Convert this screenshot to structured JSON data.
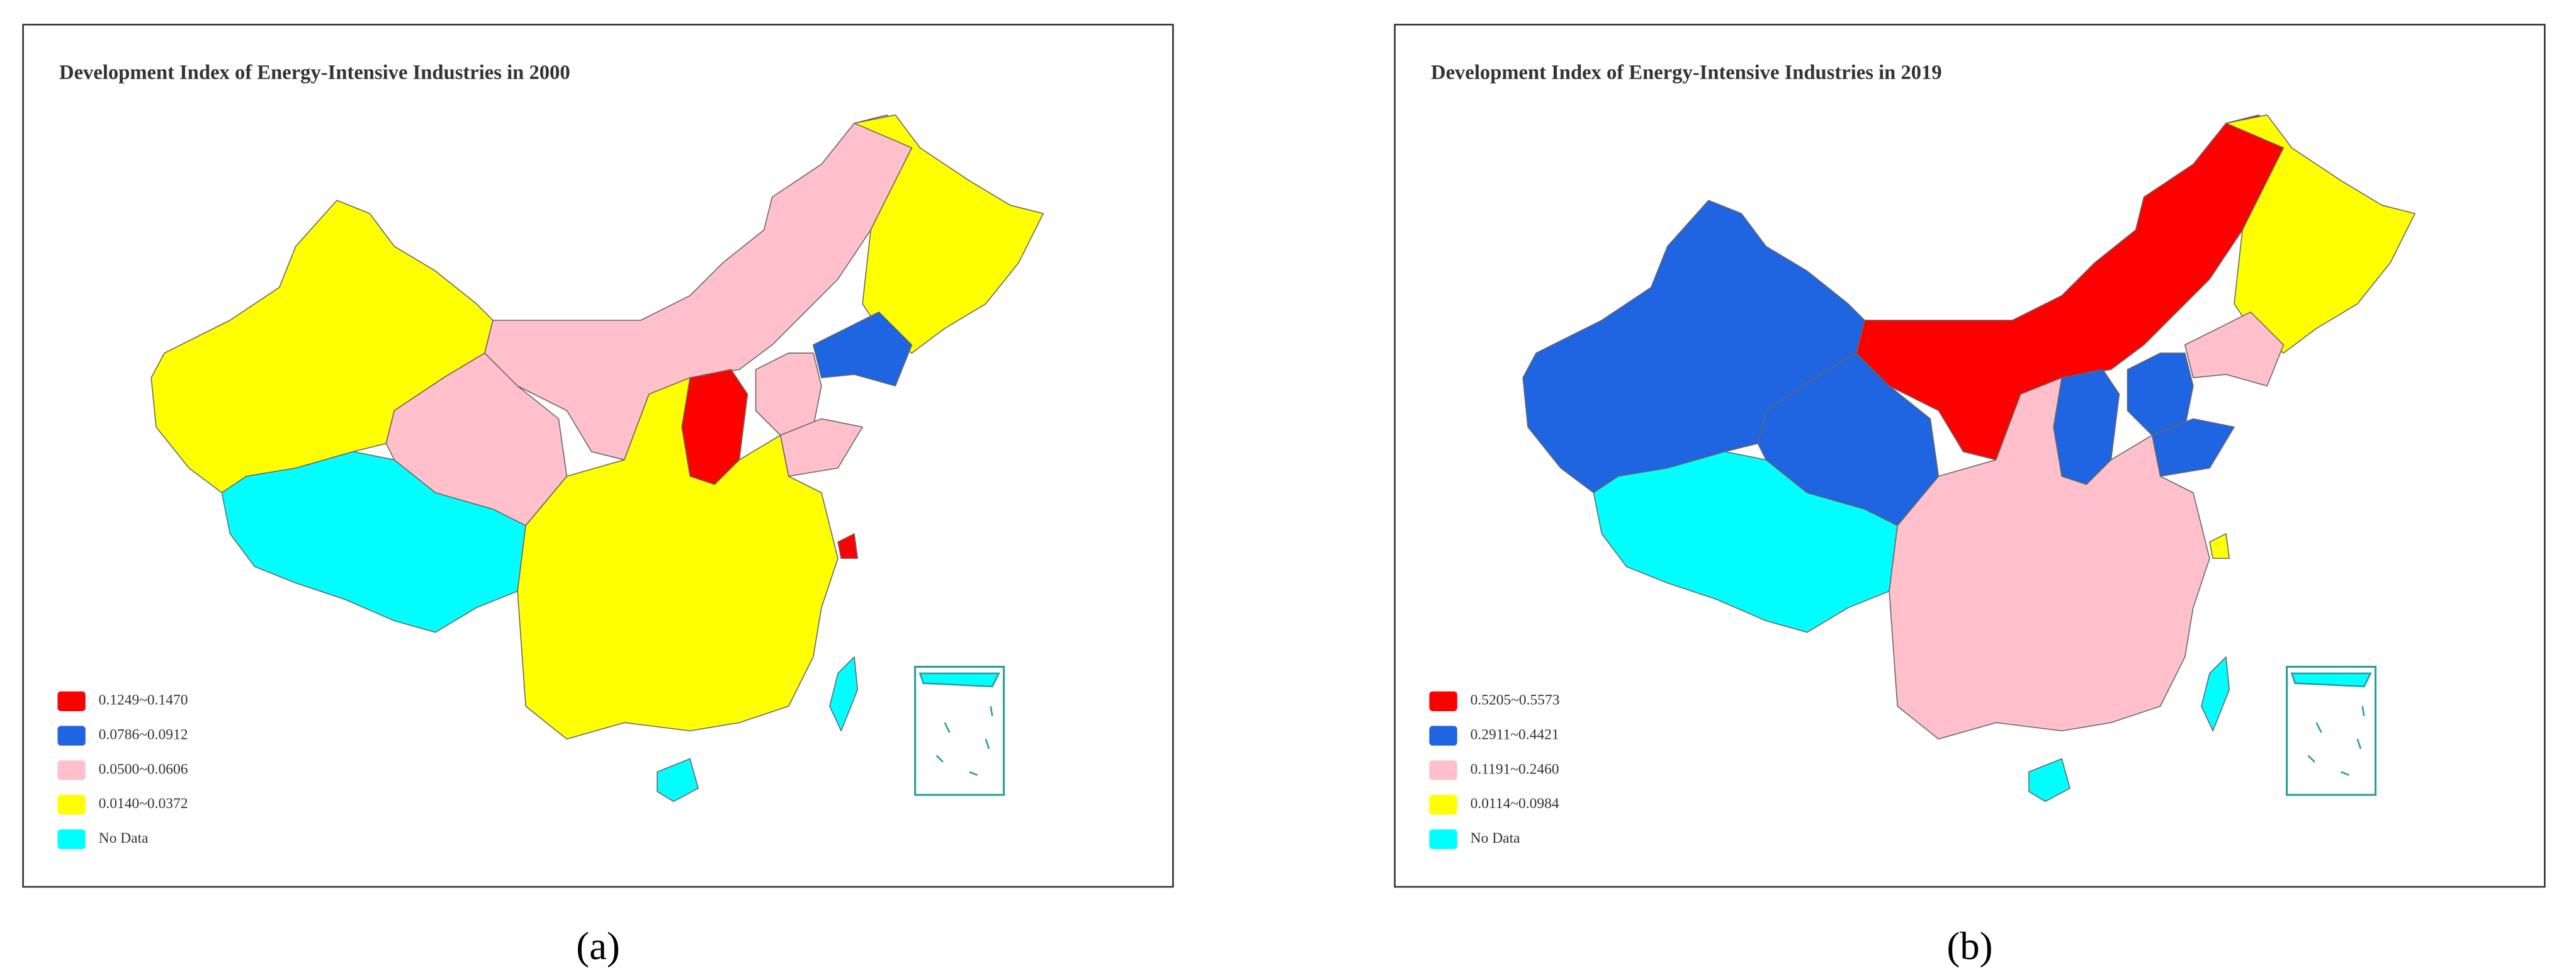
{
  "panels": [
    {
      "title": "Development Index of Energy-Intensive Industries in 2000",
      "legend": [
        {
          "label": "0.1249~0.1470",
          "color": "#ff0000"
        },
        {
          "label": "0.0786~0.0912",
          "color": "#1f64e0"
        },
        {
          "label": "0.0500~0.0606",
          "color": "#ffc0cb"
        },
        {
          "label": "0.0140~0.0372",
          "color": "#ffff00"
        },
        {
          "label": "No Data",
          "color": "#00ffff"
        }
      ],
      "label": "(a)"
    },
    {
      "title": "Development Index of Energy-Intensive Industries in 2019",
      "legend": [
        {
          "label": "0.5205~0.5573",
          "color": "#ff0000"
        },
        {
          "label": "0.2911~0.4421",
          "color": "#1f64e0"
        },
        {
          "label": "0.1191~0.2460",
          "color": "#ffc0cb"
        },
        {
          "label": "0.0114~0.0984",
          "color": "#ffff00"
        },
        {
          "label": "No Data",
          "color": "#00ffff"
        }
      ],
      "label": "(b)"
    }
  ]
}
